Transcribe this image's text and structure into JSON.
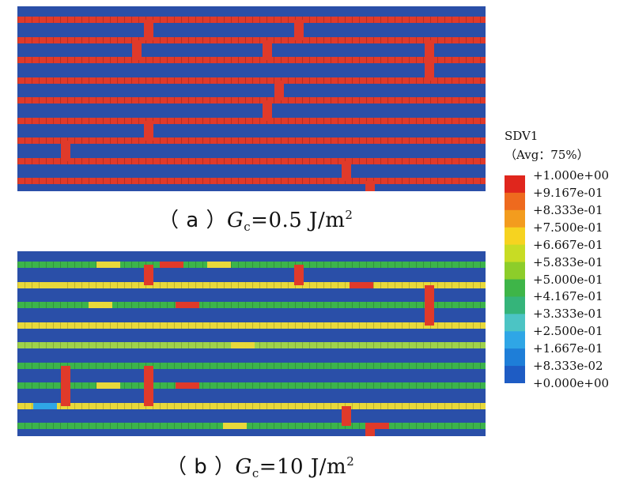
{
  "figure": {
    "panels": [
      {
        "id": "a",
        "caption": {
          "open": "（ a ）",
          "var": "G",
          "sub": "c",
          "value": "=0.5 J/m",
          "sup": "2"
        },
        "background_color": "#2a4fa8",
        "stripe_colors": [
          "#e03a2a",
          "#e03a2a",
          "#e03a2a",
          "#e03a2a",
          "#e03a2a",
          "#e03a2a",
          "#e03a2a",
          "#e03a2a",
          "#e03a2a"
        ],
        "crack_colors": [
          "#e03a2a"
        ]
      },
      {
        "id": "b",
        "caption": {
          "open": "（ b ）",
          "var": "G",
          "sub": "c",
          "value": "=10 J/m",
          "sup": "2"
        },
        "background_color": "#2a4fa8",
        "stripe_colors": [
          "#3cb44b",
          "#e8d93a",
          "#3cb44b",
          "#e8d93a",
          "#9fd24a",
          "#3cb44b",
          "#3cb44b",
          "#e8d93a",
          "#3cb44b"
        ],
        "crack_colors": [
          "#e03a2a"
        ]
      }
    ]
  },
  "legend": {
    "title": "SDV1",
    "subtitle": "（Avg：75%）",
    "labels": [
      "+1.000e+00",
      "+9.167e-01",
      "+8.333e-01",
      "+7.500e-01",
      "+6.667e-01",
      "+5.833e-01",
      "+5.000e-01",
      "+4.167e-01",
      "+3.333e-01",
      "+2.500e-01",
      "+1.667e-01",
      "+8.333e-02",
      "+0.000e+00"
    ],
    "colors": [
      "#e0261d",
      "#ee6a1e",
      "#f39c1e",
      "#f6d320",
      "#c8dc24",
      "#8dcd2a",
      "#3eb548",
      "#35b47a",
      "#4cc4c4",
      "#2fa6e6",
      "#1e7ed8",
      "#1e5cc4"
    ]
  }
}
